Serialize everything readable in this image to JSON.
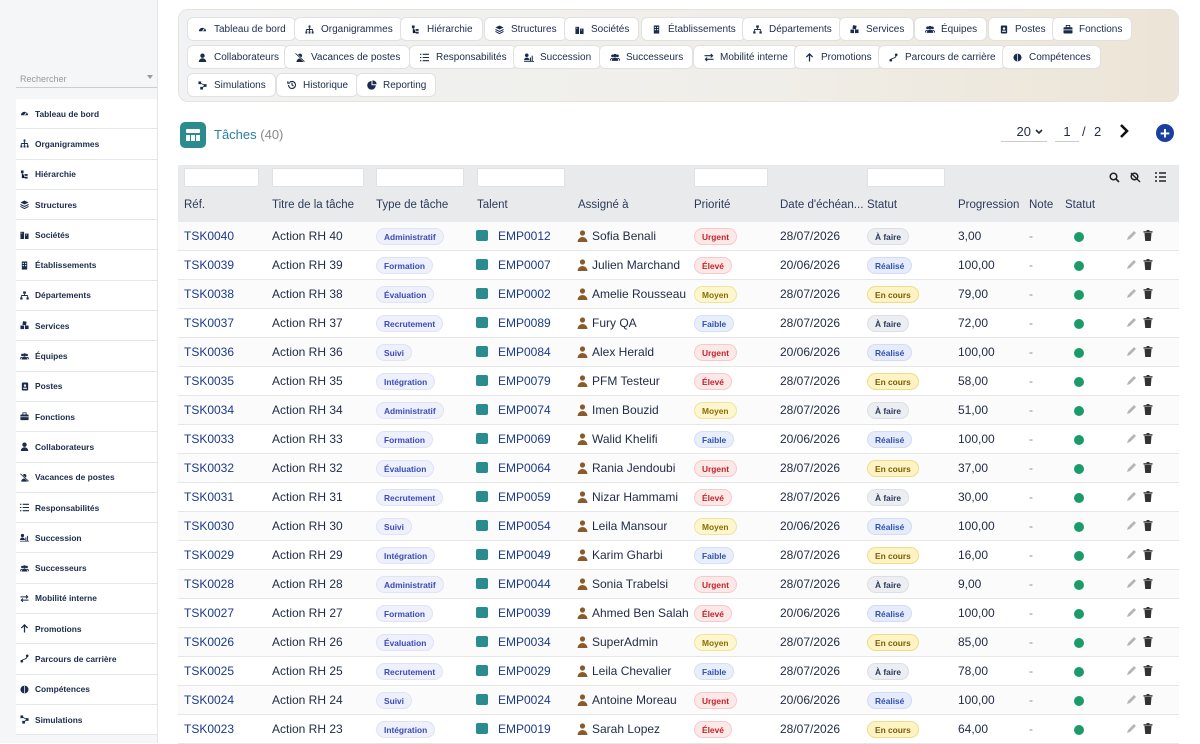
{
  "sidebar": {
    "search_placeholder": "Rechercher",
    "items": [
      {
        "label": "Tableau de bord",
        "icon": "dashboard-icon"
      },
      {
        "label": "Organigrammes",
        "icon": "org-chart-icon"
      },
      {
        "label": "Hiérarchie",
        "icon": "hierarchy-icon"
      },
      {
        "label": "Structures",
        "icon": "layers-icon"
      },
      {
        "label": "Sociétés",
        "icon": "buildings-icon"
      },
      {
        "label": "Établissements",
        "icon": "building-icon"
      },
      {
        "label": "Départements",
        "icon": "sitemap-icon"
      },
      {
        "label": "Services",
        "icon": "cubes-icon"
      },
      {
        "label": "Équipes",
        "icon": "users-icon"
      },
      {
        "label": "Postes",
        "icon": "id-badge-icon"
      },
      {
        "label": "Fonctions",
        "icon": "briefcase-icon"
      },
      {
        "label": "Collaborateurs",
        "icon": "user-icon"
      },
      {
        "label": "Vacances de postes",
        "icon": "user-slash-icon"
      },
      {
        "label": "Responsabilités",
        "icon": "list-icon"
      },
      {
        "label": "Succession",
        "icon": "user-chart-icon"
      },
      {
        "label": "Successeurs",
        "icon": "users-icon"
      },
      {
        "label": "Mobilité interne",
        "icon": "exchange-icon"
      },
      {
        "label": "Promotions",
        "icon": "arrow-up-icon"
      },
      {
        "label": "Parcours de carrière",
        "icon": "route-icon"
      },
      {
        "label": "Compétences",
        "icon": "brain-icon"
      },
      {
        "label": "Simulations",
        "icon": "network-icon"
      }
    ]
  },
  "topnav": [
    {
      "label": "Tableau de bord",
      "icon": "dashboard-icon"
    },
    {
      "label": "Organigrammes",
      "icon": "org-chart-icon"
    },
    {
      "label": "Hiérarchie",
      "icon": "hierarchy-icon"
    },
    {
      "label": "Structures",
      "icon": "layers-icon"
    },
    {
      "label": "Sociétés",
      "icon": "buildings-icon"
    },
    {
      "label": "Établissements",
      "icon": "building-icon"
    },
    {
      "label": "Départements",
      "icon": "sitemap-icon"
    },
    {
      "label": "Services",
      "icon": "cubes-icon"
    },
    {
      "label": "Équipes",
      "icon": "users-icon"
    },
    {
      "label": "Postes",
      "icon": "id-badge-icon"
    },
    {
      "label": "Fonctions",
      "icon": "briefcase-icon"
    },
    {
      "label": "Collaborateurs",
      "icon": "user-icon"
    },
    {
      "label": "Vacances de postes",
      "icon": "user-slash-icon"
    },
    {
      "label": "Responsabilités",
      "icon": "list-icon"
    },
    {
      "label": "Succession",
      "icon": "user-chart-icon"
    },
    {
      "label": "Successeurs",
      "icon": "users-icon"
    },
    {
      "label": "Mobilité interne",
      "icon": "exchange-icon"
    },
    {
      "label": "Promotions",
      "icon": "arrow-up-icon"
    },
    {
      "label": "Parcours de carrière",
      "icon": "route-icon"
    },
    {
      "label": "Compétences",
      "icon": "brain-icon"
    },
    {
      "label": "Simulations",
      "icon": "network-icon"
    },
    {
      "label": "Historique",
      "icon": "history-icon"
    },
    {
      "label": "Reporting",
      "icon": "pie-chart-icon"
    }
  ],
  "page": {
    "title": "Tâches",
    "count": "(40)",
    "page_size": "20",
    "current_page": "1",
    "separator": "/",
    "total_pages": "2"
  },
  "colors": {
    "accent": "#2a8c8f",
    "brand": "#1b3fa0",
    "active": "#1c9b6a"
  },
  "columns": [
    "Réf.",
    "Titre de la tâche",
    "Type de tâche",
    "Talent",
    "Assigné à",
    "Priorité",
    "Date d'échéan...",
    "Statut",
    "Progression",
    "Note",
    "Statut"
  ],
  "rows": [
    {
      "ref": "TSK0040",
      "title": "Action RH 40",
      "type": "Administratif",
      "talent": "EMP0012",
      "assignee": "Sofia Benali",
      "priority": "Urgent",
      "date": "28/07/2026",
      "status": "À faire",
      "progress": "3,00",
      "note": "-"
    },
    {
      "ref": "TSK0039",
      "title": "Action RH 39",
      "type": "Formation",
      "talent": "EMP0007",
      "assignee": "Julien Marchand",
      "priority": "Élevé",
      "date": "20/06/2026",
      "status": "Réalisé",
      "progress": "100,00",
      "note": "-"
    },
    {
      "ref": "TSK0038",
      "title": "Action RH 38",
      "type": "Évaluation",
      "talent": "EMP0002",
      "assignee": "Amelie Rousseau",
      "priority": "Moyen",
      "date": "28/07/2026",
      "status": "En cours",
      "progress": "79,00",
      "note": "-"
    },
    {
      "ref": "TSK0037",
      "title": "Action RH 37",
      "type": "Recrutement",
      "talent": "EMP0089",
      "assignee": "Fury QA",
      "priority": "Faible",
      "date": "28/07/2026",
      "status": "À faire",
      "progress": "72,00",
      "note": "-"
    },
    {
      "ref": "TSK0036",
      "title": "Action RH 36",
      "type": "Suivi",
      "talent": "EMP0084",
      "assignee": "Alex Herald",
      "priority": "Urgent",
      "date": "20/06/2026",
      "status": "Réalisé",
      "progress": "100,00",
      "note": "-"
    },
    {
      "ref": "TSK0035",
      "title": "Action RH 35",
      "type": "Intégration",
      "talent": "EMP0079",
      "assignee": "PFM Testeur",
      "priority": "Élevé",
      "date": "28/07/2026",
      "status": "En cours",
      "progress": "58,00",
      "note": "-"
    },
    {
      "ref": "TSK0034",
      "title": "Action RH 34",
      "type": "Administratif",
      "talent": "EMP0074",
      "assignee": "Imen Bouzid",
      "priority": "Moyen",
      "date": "28/07/2026",
      "status": "À faire",
      "progress": "51,00",
      "note": "-"
    },
    {
      "ref": "TSK0033",
      "title": "Action RH 33",
      "type": "Formation",
      "talent": "EMP0069",
      "assignee": "Walid Khelifi",
      "priority": "Faible",
      "date": "20/06/2026",
      "status": "Réalisé",
      "progress": "100,00",
      "note": "-"
    },
    {
      "ref": "TSK0032",
      "title": "Action RH 32",
      "type": "Évaluation",
      "talent": "EMP0064",
      "assignee": "Rania Jendoubi",
      "priority": "Urgent",
      "date": "28/07/2026",
      "status": "En cours",
      "progress": "37,00",
      "note": "-"
    },
    {
      "ref": "TSK0031",
      "title": "Action RH 31",
      "type": "Recrutement",
      "talent": "EMP0059",
      "assignee": "Nizar Hammami",
      "priority": "Élevé",
      "date": "28/07/2026",
      "status": "À faire",
      "progress": "30,00",
      "note": "-"
    },
    {
      "ref": "TSK0030",
      "title": "Action RH 30",
      "type": "Suivi",
      "talent": "EMP0054",
      "assignee": "Leila Mansour",
      "priority": "Moyen",
      "date": "20/06/2026",
      "status": "Réalisé",
      "progress": "100,00",
      "note": "-"
    },
    {
      "ref": "TSK0029",
      "title": "Action RH 29",
      "type": "Intégration",
      "talent": "EMP0049",
      "assignee": "Karim Gharbi",
      "priority": "Faible",
      "date": "28/07/2026",
      "status": "En cours",
      "progress": "16,00",
      "note": "-"
    },
    {
      "ref": "TSK0028",
      "title": "Action RH 28",
      "type": "Administratif",
      "talent": "EMP0044",
      "assignee": "Sonia Trabelsi",
      "priority": "Urgent",
      "date": "28/07/2026",
      "status": "À faire",
      "progress": "9,00",
      "note": "-"
    },
    {
      "ref": "TSK0027",
      "title": "Action RH 27",
      "type": "Formation",
      "talent": "EMP0039",
      "assignee": "Ahmed Ben Salah",
      "priority": "Élevé",
      "date": "20/06/2026",
      "status": "Réalisé",
      "progress": "100,00",
      "note": "-"
    },
    {
      "ref": "TSK0026",
      "title": "Action RH 26",
      "type": "Évaluation",
      "talent": "EMP0034",
      "assignee": "SuperAdmin",
      "priority": "Moyen",
      "date": "28/07/2026",
      "status": "En cours",
      "progress": "85,00",
      "note": "-"
    },
    {
      "ref": "TSK0025",
      "title": "Action RH 25",
      "type": "Recrutement",
      "talent": "EMP0029",
      "assignee": "Leila Chevalier",
      "priority": "Faible",
      "date": "28/07/2026",
      "status": "À faire",
      "progress": "78,00",
      "note": "-"
    },
    {
      "ref": "TSK0024",
      "title": "Action RH 24",
      "type": "Suivi",
      "talent": "EMP0024",
      "assignee": "Antoine Moreau",
      "priority": "Urgent",
      "date": "20/06/2026",
      "status": "Réalisé",
      "progress": "100,00",
      "note": "-"
    },
    {
      "ref": "TSK0023",
      "title": "Action RH 23",
      "type": "Intégration",
      "talent": "EMP0019",
      "assignee": "Sarah Lopez",
      "priority": "Élevé",
      "date": "28/07/2026",
      "status": "En cours",
      "progress": "64,00",
      "note": "-"
    }
  ]
}
